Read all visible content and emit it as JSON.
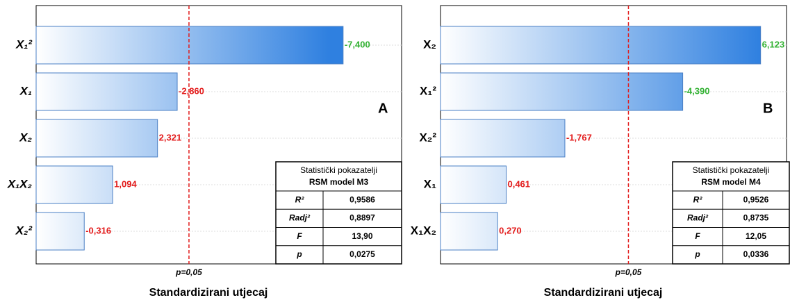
{
  "chart_data": [
    {
      "type": "pareto",
      "panel_label": "A",
      "categories": [
        "X₁²",
        "X₁",
        "X₂",
        "X₁X₂",
        "X₂²"
      ],
      "values": [
        -7.4,
        -2.86,
        2.321,
        1.094,
        -0.316
      ],
      "value_labels": [
        "-7,400",
        "-2,860",
        "2,321",
        "1,094",
        "-0,316"
      ],
      "value_label_colors": [
        "#33b233",
        "#e31b1b",
        "#e31b1b",
        "#e31b1b",
        "#e31b1b"
      ],
      "color": "#2f80e0",
      "xlim": [
        -1,
        9
      ],
      "threshold": {
        "value": 3.182,
        "label": "p=0,05"
      },
      "xlabel": "Standardizirani utjecaj",
      "stats_table": {
        "title": [
          "Statistički pokazatelji",
          "RSM model M3"
        ],
        "rows": [
          [
            "R²",
            "0,9586"
          ],
          [
            "Radj²",
            "0,8897"
          ],
          [
            "F",
            "13,90"
          ],
          [
            "p",
            "0,0275"
          ]
        ]
      }
    },
    {
      "type": "pareto",
      "panel_label": "B",
      "categories": [
        "X₂",
        "X₁²",
        "X₂²",
        "X₁",
        "X₁X₂"
      ],
      "values": [
        6.123,
        -4.39,
        -1.767,
        0.461,
        0.27
      ],
      "value_labels": [
        "6,123",
        "-4,390",
        "-1,767",
        "0,461",
        "0,270"
      ],
      "value_label_colors": [
        "#33b233",
        "#33b233",
        "#e31b1b",
        "#e31b1b",
        "#e31b1b"
      ],
      "color": "#2f80e0",
      "xlim": [
        -1,
        6.7
      ],
      "threshold": {
        "value": 3.182,
        "label": "p=0,05"
      },
      "xlabel": "Standardizirani utjecaj",
      "stats_table": {
        "title": [
          "Statistički pokazatelji",
          "RSM model M4"
        ],
        "rows": [
          [
            "R²",
            "0,9526"
          ],
          [
            "Radj²",
            "0,8735"
          ],
          [
            "F",
            "12,05"
          ],
          [
            "p",
            "0,0336"
          ]
        ]
      }
    }
  ]
}
